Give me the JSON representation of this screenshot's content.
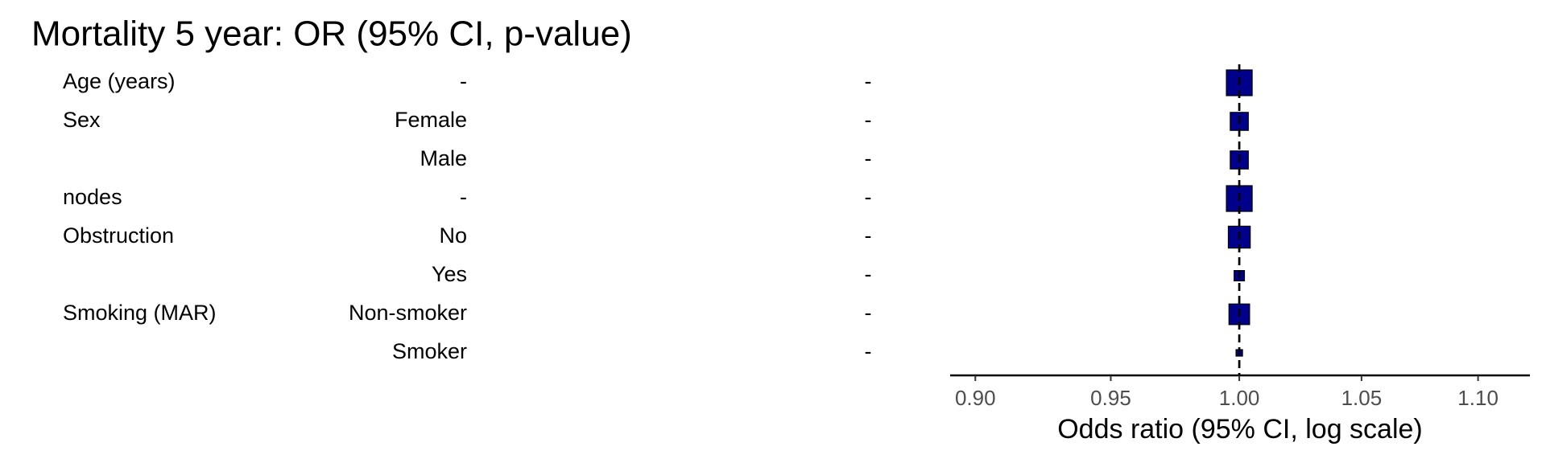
{
  "chart_data": {
    "type": "forest",
    "title": "Mortality 5 year: OR (95% CI, p-value)",
    "xlabel": "Odds ratio (95% CI, log scale)",
    "variables": [
      "Age (years)",
      "Sex",
      null,
      "nodes",
      "Obstruction",
      null,
      "Smoking (MAR)",
      null
    ],
    "levels": [
      "-",
      "Female",
      "Male",
      "-",
      "No",
      "Yes",
      "Non-smoker",
      "Smoker"
    ],
    "or_text": [
      "-",
      "-",
      "-",
      "-",
      "-",
      "-",
      "-",
      "-"
    ],
    "values": [
      1.0,
      1.0,
      1.0,
      1.0,
      1.0,
      1.0,
      1.0,
      1.0
    ],
    "weights": [
      1.0,
      0.7,
      0.7,
      1.0,
      0.85,
      0.4,
      0.8,
      0.25
    ],
    "color": "#00008b",
    "log_scale": true,
    "reference": 1,
    "xlim": [
      0.891,
      1.123
    ],
    "xticks": [
      {
        "value": 0.9,
        "label": "0.90"
      },
      {
        "value": 0.95,
        "label": "0.95"
      },
      {
        "value": 1.0,
        "label": "1.00"
      },
      {
        "value": 1.05,
        "label": "1.05"
      },
      {
        "value": 1.1,
        "label": "1.10"
      }
    ]
  }
}
